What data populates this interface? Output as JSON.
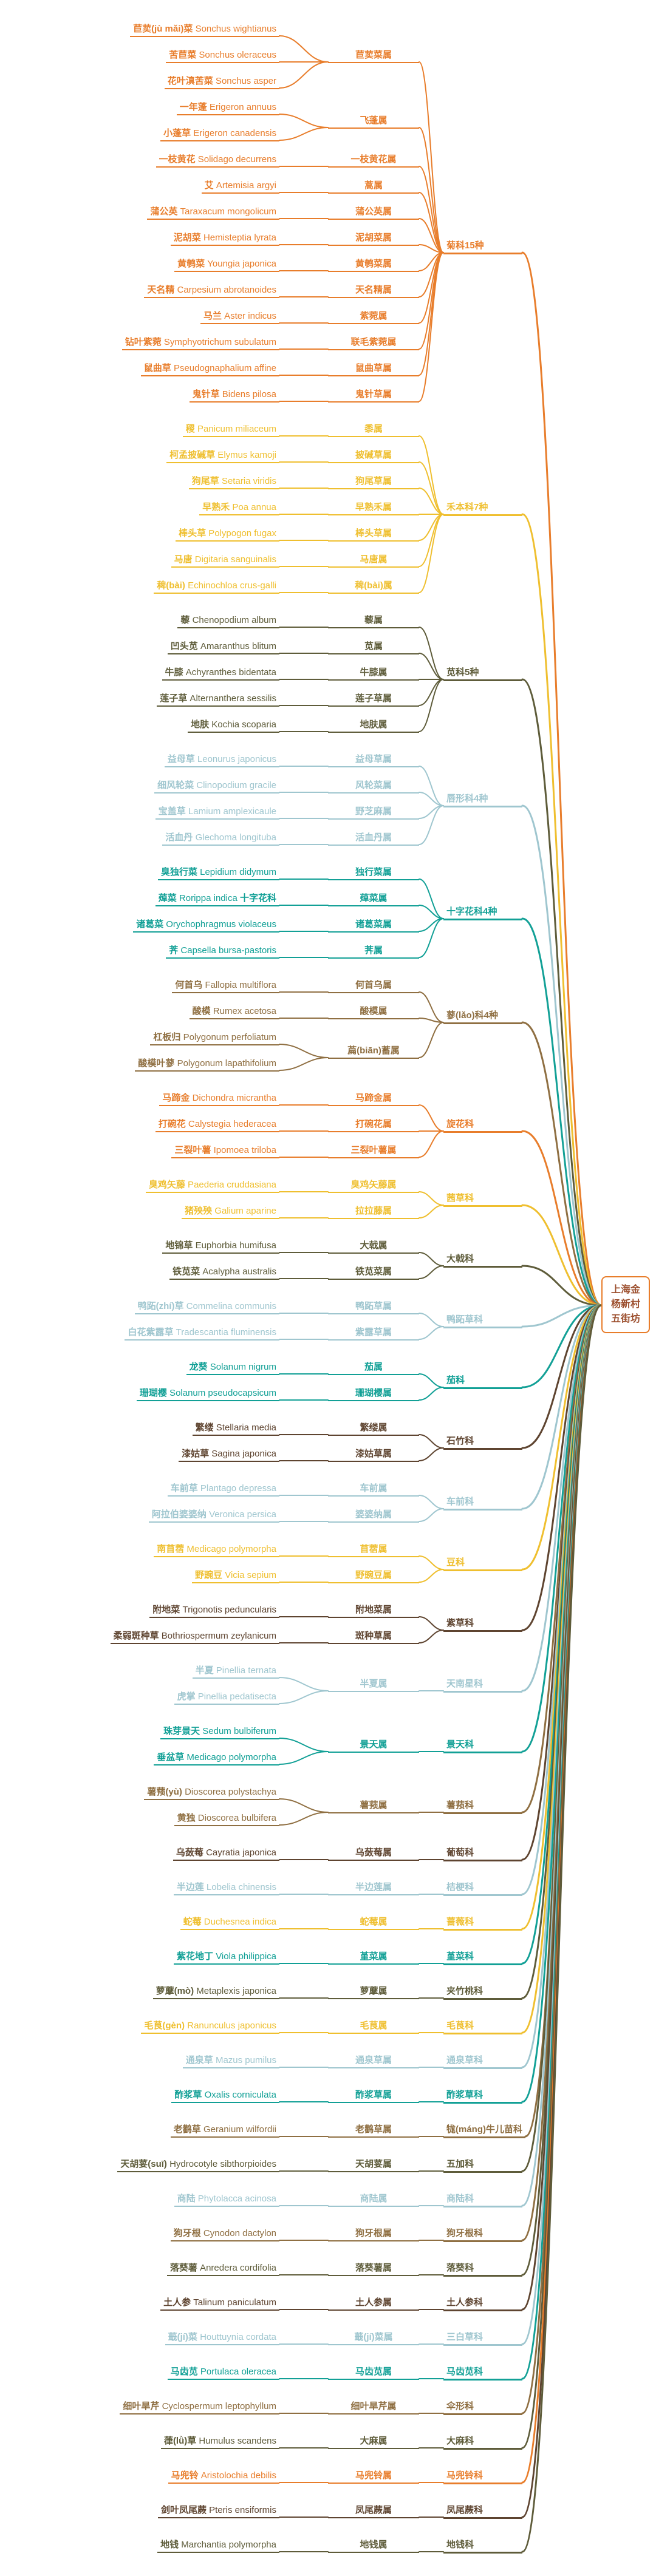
{
  "root": {
    "label": "上海金杨新村五街坊",
    "border_color": "#E87D2B",
    "text_color": "#9C4F2E",
    "background": "#FFFFFF"
  },
  "palette": {
    "orange": "#E87D2B",
    "yellow": "#EFBF2F",
    "olive": "#5E5C3A",
    "lightblue": "#9FC6CF",
    "teal": "#12A096",
    "tan": "#8F6F42",
    "darkbrown": "#5E4430"
  },
  "families": [
    {
      "label": "菊科15种",
      "color": "orange",
      "genera": [
        {
          "label": "苣荬菜属",
          "species": [
            {
              "cn": "苣荬(jù mǎi)菜",
              "latin": "Sonchus wightianus"
            },
            {
              "cn": "苦苣菜",
              "latin": "Sonchus oleraceus"
            },
            {
              "cn": "花叶滇苦菜",
              "latin": "Sonchus asper"
            }
          ]
        },
        {
          "label": "飞蓬属",
          "species": [
            {
              "cn": "一年蓬",
              "latin": "Erigeron annuus"
            },
            {
              "cn": "小蓬草",
              "latin": "Erigeron canadensis"
            }
          ]
        },
        {
          "label": "一枝黄花属",
          "species": [
            {
              "cn": "一枝黄花",
              "latin": "Solidago decurrens"
            }
          ]
        },
        {
          "label": "蒿属",
          "species": [
            {
              "cn": "艾",
              "latin": "Artemisia argyi"
            }
          ]
        },
        {
          "label": "蒲公英属",
          "species": [
            {
              "cn": "蒲公英",
              "latin": "Taraxacum mongolicum"
            }
          ]
        },
        {
          "label": "泥胡菜属",
          "species": [
            {
              "cn": "泥胡菜",
              "latin": "Hemisteptia lyrata"
            }
          ]
        },
        {
          "label": "黄鹌菜属",
          "species": [
            {
              "cn": "黄鹌菜",
              "latin": "Youngia japonica"
            }
          ]
        },
        {
          "label": "天名精属",
          "species": [
            {
              "cn": "天名精",
              "latin": "Carpesium abrotanoides"
            }
          ]
        },
        {
          "label": "紫菀属",
          "species": [
            {
              "cn": "马兰",
              "latin": "Aster indicus"
            }
          ]
        },
        {
          "label": "联毛紫菀属",
          "species": [
            {
              "cn": "钻叶紫菀",
              "latin": "Symphyotrichum subulatum"
            }
          ]
        },
        {
          "label": "鼠曲草属",
          "species": [
            {
              "cn": "鼠曲草",
              "latin": "Pseudognaphalium affine"
            }
          ]
        },
        {
          "label": "鬼针草属",
          "species": [
            {
              "cn": "鬼针草",
              "latin": "Bidens pilosa"
            }
          ]
        }
      ]
    },
    {
      "label": "禾本科7种",
      "color": "yellow",
      "genera": [
        {
          "label": "黍属",
          "species": [
            {
              "cn": "稷",
              "latin": "Panicum miliaceum"
            }
          ]
        },
        {
          "label": "披碱草属",
          "species": [
            {
              "cn": "柯孟披碱草",
              "latin": "Elymus kamoji"
            }
          ]
        },
        {
          "label": "狗尾草属",
          "species": [
            {
              "cn": "狗尾草",
              "latin": "Setaria viridis"
            }
          ]
        },
        {
          "label": "早熟禾属",
          "species": [
            {
              "cn": "早熟禾",
              "latin": "Poa annua"
            }
          ]
        },
        {
          "label": "棒头草属",
          "species": [
            {
              "cn": "棒头草",
              "latin": "Polypogon fugax"
            }
          ]
        },
        {
          "label": "马唐属",
          "species": [
            {
              "cn": "马唐",
              "latin": "Digitaria sanguinalis"
            }
          ]
        },
        {
          "label": "稗(bài)属",
          "species": [
            {
              "cn": "稗(bài)",
              "latin": "Echinochloa crus-galli"
            }
          ]
        }
      ]
    },
    {
      "label": "苋科5种",
      "color": "olive",
      "genera": [
        {
          "label": "藜属",
          "species": [
            {
              "cn": "藜",
              "latin": "Chenopodium album"
            }
          ]
        },
        {
          "label": "苋属",
          "species": [
            {
              "cn": "凹头苋",
              "latin": "Amaranthus blitum"
            }
          ]
        },
        {
          "label": "牛膝属",
          "species": [
            {
              "cn": "牛膝",
              "latin": "Achyranthes bidentata"
            }
          ]
        },
        {
          "label": "莲子草属",
          "species": [
            {
              "cn": "莲子草",
              "latin": "Alternanthera sessilis"
            }
          ]
        },
        {
          "label": "地肤属",
          "species": [
            {
              "cn": "地肤",
              "latin": "Kochia scoparia"
            }
          ]
        }
      ]
    },
    {
      "label": "唇形科4种",
      "color": "lightblue",
      "genera": [
        {
          "label": "益母草属",
          "species": [
            {
              "cn": "益母草",
              "latin": "Leonurus japonicus"
            }
          ]
        },
        {
          "label": "风轮菜属",
          "species": [
            {
              "cn": "细风轮菜",
              "latin": "Clinopodium gracile"
            }
          ]
        },
        {
          "label": "野芝麻属",
          "species": [
            {
              "cn": "宝盖草",
              "latin": "Lamium amplexicaule"
            }
          ]
        },
        {
          "label": "活血丹属",
          "species": [
            {
              "cn": "活血丹",
              "latin": "Glechoma longituba"
            }
          ]
        }
      ]
    },
    {
      "label": "十字花科4种",
      "color": "teal",
      "genera": [
        {
          "label": "独行菜属",
          "species": [
            {
              "cn": "臭独行菜",
              "latin": "Lepidium didymum"
            }
          ]
        },
        {
          "label": "蔊菜属",
          "species": [
            {
              "cn": "蔊菜",
              "latin": "Rorippa indica",
              "tail": "十字花科"
            }
          ]
        },
        {
          "label": "诸葛菜属",
          "species": [
            {
              "cn": "诸葛菜",
              "latin": "Orychophragmus violaceus"
            }
          ]
        },
        {
          "label": "荠属",
          "species": [
            {
              "cn": "荠",
              "latin": "Capsella bursa-pastoris"
            }
          ]
        }
      ]
    },
    {
      "label": "蓼(lǎo)科4种",
      "color": "tan",
      "genera": [
        {
          "label": "何首乌属",
          "species": [
            {
              "cn": "何首乌",
              "latin": "Fallopia multiflora"
            }
          ]
        },
        {
          "label": "酸模属",
          "species": [
            {
              "cn": "酸模",
              "latin": "Rumex acetosa"
            }
          ]
        },
        {
          "label": "萹(biān)蓄属",
          "species": [
            {
              "cn": "杠板归",
              "latin": "Polygonum perfoliatum"
            },
            {
              "cn": "酸模叶蓼",
              "latin": "Polygonum lapathifolium"
            }
          ]
        }
      ]
    },
    {
      "label": "旋花科",
      "color": "orange",
      "genera": [
        {
          "label": "马蹄金属",
          "species": [
            {
              "cn": "马蹄金",
              "latin": "Dichondra micrantha"
            }
          ]
        },
        {
          "label": "打碗花属",
          "species": [
            {
              "cn": "打碗花",
              "latin": "Calystegia hederacea"
            }
          ]
        },
        {
          "label": "三裂叶薯属",
          "species": [
            {
              "cn": "三裂叶薯",
              "latin": "Ipomoea triloba"
            }
          ]
        }
      ]
    },
    {
      "label": "茜草科",
      "color": "yellow",
      "genera": [
        {
          "label": "臭鸡矢藤属",
          "species": [
            {
              "cn": "臭鸡矢藤",
              "latin": "Paederia cruddasiana"
            }
          ]
        },
        {
          "label": "拉拉藤属",
          "species": [
            {
              "cn": "猪殃殃",
              "latin": "Galium aparine"
            }
          ]
        }
      ]
    },
    {
      "label": "大戟科",
      "color": "olive",
      "genera": [
        {
          "label": "大戟属",
          "species": [
            {
              "cn": "地锦草",
              "latin": "Euphorbia humifusa"
            }
          ]
        },
        {
          "label": "铁苋菜属",
          "species": [
            {
              "cn": "铁苋菜",
              "latin": "Acalypha australis"
            }
          ]
        }
      ]
    },
    {
      "label": "鸭跖草科",
      "color": "lightblue",
      "genera": [
        {
          "label": "鸭跖草属",
          "species": [
            {
              "cn": "鸭跖(zhí)草",
              "latin": "Commelina communis"
            }
          ]
        },
        {
          "label": "紫露草属",
          "species": [
            {
              "cn": "白花紫露草",
              "latin": "Tradescantia fluminensis"
            }
          ]
        }
      ]
    },
    {
      "label": "茄科",
      "color": "teal",
      "genera": [
        {
          "label": "茄属",
          "species": [
            {
              "cn": "龙葵",
              "latin": "Solanum nigrum"
            }
          ]
        },
        {
          "label": "珊瑚樱属",
          "species": [
            {
              "cn": "珊瑚樱",
              "latin": "Solanum pseudocapsicum"
            }
          ]
        }
      ]
    },
    {
      "label": "石竹科",
      "color": "darkbrown",
      "genera": [
        {
          "label": "繁缕属",
          "species": [
            {
              "cn": "繁缕",
              "latin": "Stellaria media"
            }
          ]
        },
        {
          "label": "漆姑草属",
          "species": [
            {
              "cn": "漆姑草",
              "latin": "Sagina japonica"
            }
          ]
        }
      ]
    },
    {
      "label": "车前科",
      "color": "lightblue",
      "genera": [
        {
          "label": "车前属",
          "species": [
            {
              "cn": "车前草",
              "latin": "Plantago depressa"
            }
          ]
        },
        {
          "label": "婆婆纳属",
          "species": [
            {
              "cn": "阿拉伯婆婆纳",
              "latin": "Veronica persica"
            }
          ]
        }
      ]
    },
    {
      "label": "豆科",
      "color": "yellow",
      "genera": [
        {
          "label": "苜蓿属",
          "species": [
            {
              "cn": "南苜蓿",
              "latin": "Medicago polymorpha"
            }
          ]
        },
        {
          "label": "野豌豆属",
          "species": [
            {
              "cn": "野豌豆",
              "latin": "Vicia sepium"
            }
          ]
        }
      ]
    },
    {
      "label": "紫草科",
      "color": "darkbrown",
      "genera": [
        {
          "label": "附地菜属",
          "species": [
            {
              "cn": "附地菜",
              "latin": "Trigonotis peduncularis"
            }
          ]
        },
        {
          "label": "斑种草属",
          "species": [
            {
              "cn": "柔弱斑种草",
              "latin": "Bothriospermum zeylanicum"
            }
          ]
        }
      ]
    },
    {
      "label": "天南星科",
      "color": "lightblue",
      "genera": [
        {
          "label": "半夏属",
          "species": [
            {
              "cn": "半夏",
              "latin": "Pinellia ternata"
            },
            {
              "cn": "虎掌",
              "latin": "Pinellia pedatisecta"
            }
          ]
        }
      ]
    },
    {
      "label": "景天科",
      "color": "teal",
      "genera": [
        {
          "label": "景天属",
          "species": [
            {
              "cn": "珠芽景天",
              "latin": "Sedum bulbiferum"
            },
            {
              "cn": "垂盆草",
              "latin": "Medicago polymorpha"
            }
          ]
        }
      ]
    },
    {
      "label": "薯蓣科",
      "color": "tan",
      "genera": [
        {
          "label": "薯蓣属",
          "species": [
            {
              "cn": "薯蓣(yù)",
              "latin": "Dioscorea polystachya"
            },
            {
              "cn": "黄独",
              "latin": "Dioscorea bulbifera"
            }
          ]
        }
      ]
    },
    {
      "label": "葡萄科",
      "color": "darkbrown",
      "genera": [
        {
          "label": "乌蔹莓属",
          "species": [
            {
              "cn": "乌蔹莓",
              "latin": "Cayratia japonica"
            }
          ]
        }
      ]
    },
    {
      "label": "桔梗科",
      "color": "lightblue",
      "genera": [
        {
          "label": "半边莲属",
          "species": [
            {
              "cn": "半边莲",
              "latin": "Lobelia chinensis"
            }
          ]
        }
      ]
    },
    {
      "label": "蔷薇科",
      "color": "yellow",
      "genera": [
        {
          "label": "蛇莓属",
          "species": [
            {
              "cn": "蛇莓",
              "latin": "Duchesnea indica"
            }
          ]
        }
      ]
    },
    {
      "label": "堇菜科",
      "color": "teal",
      "genera": [
        {
          "label": "堇菜属",
          "species": [
            {
              "cn": "紫花地丁",
              "latin": "Viola philippica"
            }
          ]
        }
      ]
    },
    {
      "label": "夹竹桃科",
      "color": "olive",
      "genera": [
        {
          "label": "萝藦属",
          "species": [
            {
              "cn": "萝藦(mò)",
              "latin": "Metaplexis japonica"
            }
          ]
        }
      ]
    },
    {
      "label": "毛茛科",
      "color": "yellow",
      "genera": [
        {
          "label": "毛茛属",
          "species": [
            {
              "cn": "毛茛(gèn)",
              "latin": "Ranunculus japonicus"
            }
          ]
        }
      ]
    },
    {
      "label": "通泉草科",
      "color": "lightblue",
      "genera": [
        {
          "label": "通泉草属",
          "species": [
            {
              "cn": "通泉草",
              "latin": "Mazus pumilus"
            }
          ]
        }
      ]
    },
    {
      "label": "酢浆草科",
      "color": "teal",
      "genera": [
        {
          "label": "酢浆草属",
          "species": [
            {
              "cn": "酢浆草",
              "latin": "Oxalis corniculata"
            }
          ]
        }
      ]
    },
    {
      "label": "牻(máng)牛儿苗科",
      "color": "tan",
      "genera": [
        {
          "label": "老鹳草属",
          "species": [
            {
              "cn": "老鹳草",
              "latin": "Geranium wilfordii"
            }
          ]
        }
      ]
    },
    {
      "label": "五加科",
      "color": "olive",
      "genera": [
        {
          "label": "天胡荽属",
          "species": [
            {
              "cn": "天胡荽(suī)",
              "latin": "Hydrocotyle sibthorpioides"
            }
          ]
        }
      ]
    },
    {
      "label": "商陆科",
      "color": "lightblue",
      "genera": [
        {
          "label": "商陆属",
          "species": [
            {
              "cn": "商陆",
              "latin": "Phytolacca acinosa"
            }
          ]
        }
      ]
    },
    {
      "label": "狗牙根科",
      "color": "tan",
      "genera": [
        {
          "label": "狗牙根属",
          "species": [
            {
              "cn": "狗牙根",
              "latin": "Cynodon dactylon"
            }
          ]
        }
      ]
    },
    {
      "label": "落葵科",
      "color": "olive",
      "genera": [
        {
          "label": "落葵薯属",
          "species": [
            {
              "cn": "落葵薯",
              "latin": "Anredera cordifolia"
            }
          ]
        }
      ]
    },
    {
      "label": "土人参科",
      "color": "darkbrown",
      "genera": [
        {
          "label": "土人参属",
          "species": [
            {
              "cn": "土人参",
              "latin": "Talinum paniculatum"
            }
          ]
        }
      ]
    },
    {
      "label": "三白草科",
      "color": "lightblue",
      "genera": [
        {
          "label": "蕺(jí)菜属",
          "species": [
            {
              "cn": "蕺(jí)菜",
              "latin": "Houttuynia cordata"
            }
          ]
        }
      ]
    },
    {
      "label": "马齿苋科",
      "color": "teal",
      "genera": [
        {
          "label": "马齿苋属",
          "species": [
            {
              "cn": "马齿苋",
              "latin": "Portulaca oleracea"
            }
          ]
        }
      ]
    },
    {
      "label": "伞形科",
      "color": "tan",
      "genera": [
        {
          "label": "细叶旱芹属",
          "species": [
            {
              "cn": "细叶旱芹",
              "latin": "Cyclospermum leptophyllum"
            }
          ]
        }
      ]
    },
    {
      "label": "大麻科",
      "color": "olive",
      "genera": [
        {
          "label": "大麻属",
          "species": [
            {
              "cn": "葎(lǜ)草",
              "latin": "Humulus scandens"
            }
          ]
        }
      ]
    },
    {
      "label": "马兜铃科",
      "color": "orange",
      "genera": [
        {
          "label": "马兜铃属",
          "species": [
            {
              "cn": "马兜铃",
              "latin": "Aristolochia debilis"
            }
          ]
        }
      ]
    },
    {
      "label": "凤尾蕨科",
      "color": "darkbrown",
      "genera": [
        {
          "label": "凤尾蕨属",
          "species": [
            {
              "cn": "剑叶凤尾蕨",
              "latin": "Pteris ensiformis"
            }
          ]
        }
      ]
    },
    {
      "label": "地钱科",
      "color": "olive",
      "genera": [
        {
          "label": "地钱属",
          "species": [
            {
              "cn": "地钱",
              "latin": "Marchantia polymorpha"
            }
          ]
        }
      ]
    }
  ]
}
